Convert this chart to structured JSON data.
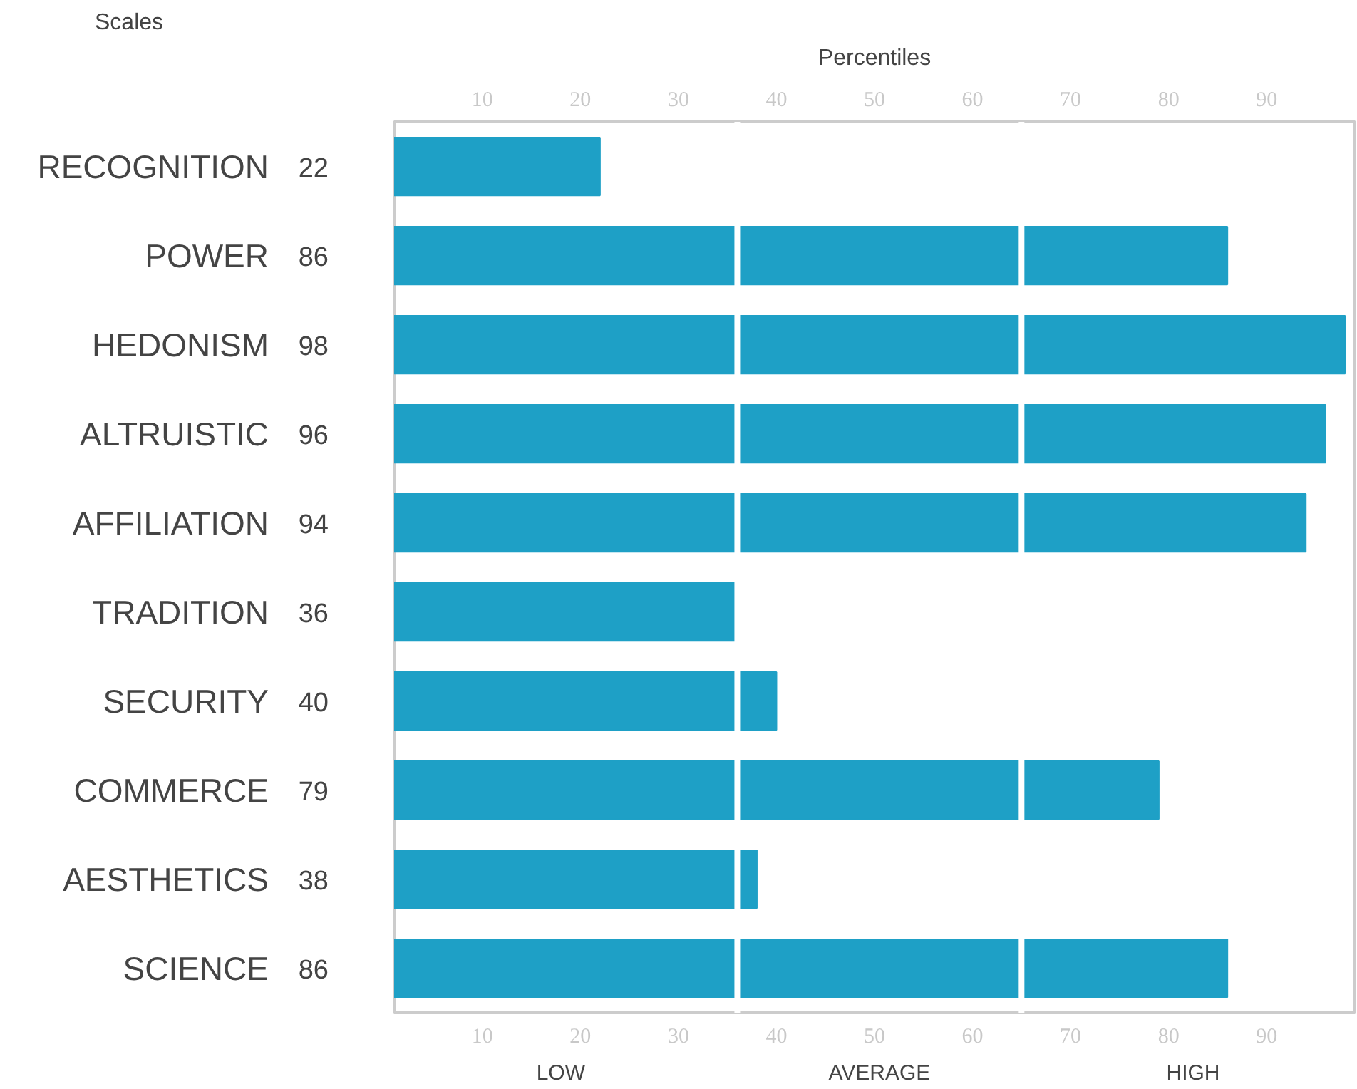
{
  "chart_data": {
    "type": "bar",
    "orientation": "horizontal",
    "xlabel": "Percentiles",
    "ylabel": "Scales",
    "categories": [
      "RECOGNITION",
      "POWER",
      "HEDONISM",
      "ALTRUISTIC",
      "AFFILIATION",
      "TRADITION",
      "SECURITY",
      "COMMERCE",
      "AESTHETICS",
      "SCIENCE"
    ],
    "values": [
      22,
      86,
      98,
      96,
      94,
      36,
      40,
      79,
      38,
      86
    ],
    "color": "#1ea0c6",
    "data_labels": true,
    "xlim": [
      1,
      99
    ],
    "xticks": [
      10,
      20,
      30,
      40,
      50,
      60,
      70,
      80,
      90
    ],
    "x2lim": [
      1,
      99
    ],
    "x2ticks": [
      10,
      20,
      30,
      40,
      50,
      60,
      70,
      80,
      90
    ],
    "ref_lines": [
      {
        "axis": "x",
        "value": 36,
        "color": "#ffffff"
      },
      {
        "axis": "x",
        "value": 65,
        "color": "#ffffff"
      }
    ],
    "annotations": [
      "LOW",
      "AVERAGE",
      "HIGH"
    ],
    "grid": false
  }
}
